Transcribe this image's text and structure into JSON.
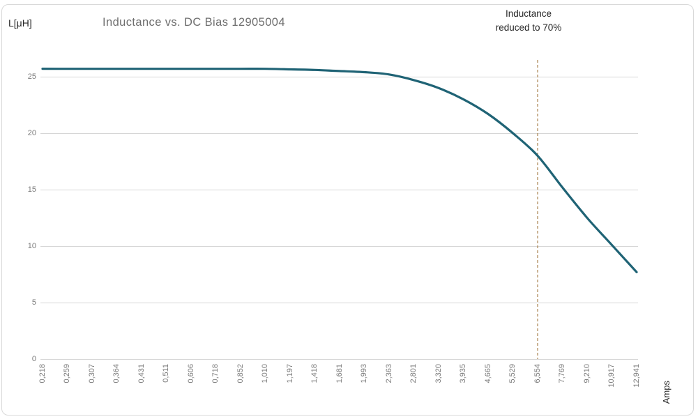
{
  "header": {
    "y_axis_unit_label": "L[μH]",
    "title": "Inductance vs. DC Bias 12905004",
    "annotation_line1": "Inductance",
    "annotation_line2": "reduced to 70%"
  },
  "axes": {
    "x_title": "Amps",
    "y_tick_labels": [
      "0",
      "5",
      "10",
      "15",
      "20",
      "25"
    ]
  },
  "colors": {
    "series": "#1f6375",
    "threshold_line": "#a9824f",
    "grid": "#d6d6d6",
    "title_text": "#6e6e6e",
    "tick_text": "#7a7a7a",
    "dark_text": "#262626",
    "frame_border": "#d9d9d9",
    "background": "#ffffff"
  },
  "chart_data": {
    "type": "line",
    "title": "Inductance vs. DC Bias 12905004",
    "xlabel": "Amps",
    "ylabel": "L[μH]",
    "categories": [
      "0,218",
      "0,259",
      "0,307",
      "0,364",
      "0,431",
      "0,511",
      "0,606",
      "0,718",
      "0,852",
      "1,010",
      "1,197",
      "1,418",
      "1,681",
      "1,993",
      "2,363",
      "2,801",
      "3,320",
      "3,935",
      "4,665",
      "5,529",
      "6,554",
      "7,769",
      "9,210",
      "10,917",
      "12,941"
    ],
    "series": [
      {
        "name": "Inductance",
        "values": [
          25.7,
          25.7,
          25.7,
          25.7,
          25.7,
          25.7,
          25.7,
          25.7,
          25.7,
          25.7,
          25.65,
          25.6,
          25.5,
          25.4,
          25.2,
          24.7,
          24.0,
          23.0,
          21.7,
          20.0,
          18.0,
          15.2,
          12.5,
          10.1,
          7.7
        ]
      }
    ],
    "yticks": [
      0,
      5,
      10,
      15,
      20,
      25
    ],
    "ylim": [
      0,
      27
    ],
    "grid": "horizontal",
    "legend": "none",
    "x_axis_style": "category, labels rotated 90deg, comma decimal separator",
    "annotation": {
      "text": "Inductance reduced to 70%",
      "marker": "vertical dashed line",
      "at_category": "6,554"
    }
  }
}
